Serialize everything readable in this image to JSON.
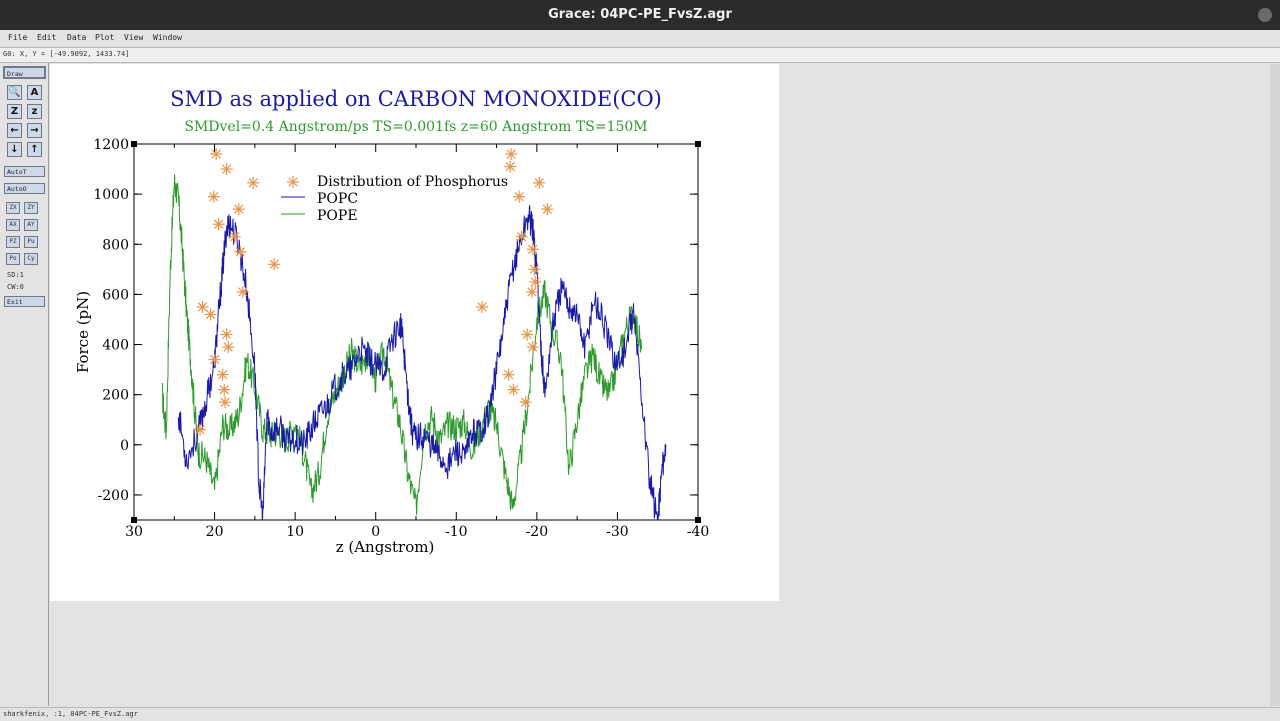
{
  "window": {
    "title": "Grace: 04PC-PE_FvsZ.agr"
  },
  "menu": [
    "File",
    "Edit",
    "Data",
    "Plot",
    "View",
    "Window"
  ],
  "locator": "G0: X, Y = [-49.9092, 1433.74]",
  "toolbox": {
    "draw": "Draw",
    "autot": "AutoT",
    "autoo": "AutoO",
    "zoom_icons": [
      "zoom-icon",
      "text-zoom-icon",
      "zoom-x-icon",
      "zoom-y-icon",
      "left-arrow-icon",
      "right-arrow-icon",
      "down-arrow-icon",
      "up-arrow-icon"
    ],
    "zoom_glyphs": [
      "🔍",
      "A",
      "Z",
      "z",
      "←",
      "→",
      "↓",
      "↑"
    ],
    "small_buttons": [
      "ZX",
      "ZY",
      "AX",
      "AY",
      "PZ",
      "Pu",
      "Po",
      "Cy"
    ],
    "sd": "SD:1",
    "cw": "CW:0",
    "exit": "Exit"
  },
  "status": "sharkfenix, :1, 04PC-PE_FvsZ.agr",
  "chart_data": {
    "type": "line",
    "title": "SMD as applied on CARBON MONOXIDE(CO)",
    "subtitle": "SMDvel=0.4 Angstrom/ps TS=0.001fs z=60 Angstrom TS=150M",
    "xlabel": "z (Angstrom)",
    "ylabel": "Force (pN)",
    "xlim": [
      30,
      -40
    ],
    "ylim": [
      -300,
      1200
    ],
    "xticks": [
      "30",
      "20",
      "10",
      "0",
      "-10",
      "-20",
      "-30",
      "-40"
    ],
    "yticks": [
      "-200",
      "0",
      "200",
      "400",
      "600",
      "800",
      "1000",
      "1200"
    ],
    "legend_position": "top-center",
    "colors": {
      "title": "#1a1aa0",
      "subtitle": "#2e9a2e",
      "popc": "#1a1aa8",
      "pope": "#2e9a2e",
      "phosphorus": "#e8944a"
    },
    "series": [
      {
        "name": "Distribution of Phosphorus",
        "kind": "scatter",
        "x": [
          19.8,
          18.5,
          20.1,
          17.0,
          15.2,
          12.6,
          19.5,
          17.5,
          16.8,
          16.5,
          21.5,
          20.5,
          18.5,
          18.3,
          20.0,
          19.0,
          18.8,
          18.7,
          21.8,
          -16.8,
          -16.7,
          -17.8,
          -20.3,
          -21.3,
          -18.1,
          -19.5,
          -19.7,
          -19.8,
          -19.4,
          -13.2,
          -18.8,
          -19.5,
          -16.5,
          -17.1,
          -18.6
        ],
        "y": [
          1160,
          1100,
          990,
          940,
          1045,
          720,
          880,
          830,
          770,
          610,
          550,
          520,
          440,
          390,
          340,
          280,
          220,
          170,
          60,
          1160,
          1110,
          990,
          1045,
          940,
          830,
          780,
          700,
          650,
          610,
          550,
          440,
          390,
          280,
          220,
          170
        ]
      },
      {
        "name": "POPC",
        "kind": "line",
        "x": [
          24.5,
          23.5,
          22,
          21,
          20,
          19.5,
          19,
          18.5,
          18,
          17,
          16,
          15,
          14.5,
          14,
          13.5,
          13,
          12,
          11,
          10,
          9,
          8,
          7,
          6,
          5,
          4,
          3,
          2,
          1,
          0,
          -1,
          -2,
          -3,
          -3.3,
          -4,
          -4.5,
          -5,
          -6,
          -7,
          -8,
          -9,
          -10,
          -11,
          -12,
          -13,
          -14,
          -15,
          -16,
          -17,
          -18,
          -19,
          -19.5,
          -20,
          -20.5,
          -21,
          -22,
          -23,
          -24,
          -25,
          -26,
          -27,
          -28,
          -29,
          -30,
          -31,
          -32,
          -33,
          -34,
          -35,
          -35.5,
          -36
        ],
        "y": [
          130,
          -60,
          50,
          180,
          330,
          520,
          700,
          870,
          880,
          800,
          620,
          300,
          -150,
          -290,
          120,
          50,
          70,
          10,
          30,
          0,
          60,
          120,
          160,
          230,
          280,
          300,
          380,
          350,
          310,
          300,
          420,
          480,
          440,
          200,
          60,
          30,
          40,
          0,
          -50,
          -80,
          -20,
          -60,
          50,
          60,
          120,
          300,
          500,
          700,
          820,
          920,
          860,
          700,
          400,
          200,
          480,
          620,
          560,
          520,
          380,
          580,
          520,
          400,
          320,
          380,
          530,
          200,
          -150,
          -300,
          -100,
          0
        ]
      },
      {
        "name": "POPE",
        "kind": "line",
        "x": [
          26.5,
          26,
          25.5,
          25,
          24.5,
          24,
          23.5,
          23,
          22.5,
          22,
          21,
          20,
          19,
          18,
          17,
          16,
          15,
          14,
          13,
          12,
          11,
          10,
          9,
          8,
          7,
          6,
          5,
          4,
          3,
          2,
          1,
          0,
          -1,
          -2,
          -3,
          -4,
          -5,
          -6,
          -7,
          -8,
          -9,
          -10,
          -11,
          -12,
          -13,
          -14,
          -15,
          -16,
          -17,
          -18,
          -19,
          -20,
          -21,
          -22,
          -23,
          -24,
          -25,
          -26,
          -27,
          -28,
          -29,
          -30,
          -31,
          -32,
          -33
        ],
        "y": [
          200,
          50,
          700,
          1050,
          980,
          780,
          540,
          350,
          150,
          -30,
          -60,
          -180,
          80,
          60,
          120,
          340,
          230,
          60,
          40,
          50,
          20,
          90,
          -30,
          -190,
          -110,
          120,
          210,
          280,
          370,
          310,
          360,
          260,
          380,
          210,
          90,
          -120,
          -250,
          60,
          110,
          20,
          80,
          70,
          90,
          -20,
          60,
          150,
          80,
          -100,
          -250,
          -50,
          200,
          500,
          610,
          450,
          350,
          -100,
          100,
          280,
          360,
          240,
          200,
          320,
          460,
          530,
          380
        ]
      }
    ]
  }
}
